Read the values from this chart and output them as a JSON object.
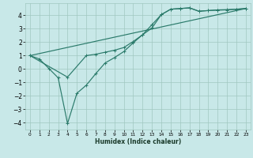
{
  "xlabel": "Humidex (Indice chaleur)",
  "ylabel": "",
  "bg_color": "#c8e8e8",
  "grid_color": "#a0c8c0",
  "line_color": "#2a7a6a",
  "xlim": [
    -0.5,
    23.5
  ],
  "ylim": [
    -4.5,
    4.9
  ],
  "xticks": [
    0,
    1,
    2,
    3,
    4,
    5,
    6,
    7,
    8,
    9,
    10,
    11,
    12,
    13,
    14,
    15,
    16,
    17,
    18,
    19,
    20,
    21,
    22,
    23
  ],
  "yticks": [
    -4,
    -3,
    -2,
    -1,
    0,
    1,
    2,
    3,
    4
  ],
  "line1_x": [
    0,
    1,
    2,
    3,
    4,
    5,
    6,
    7,
    8,
    9,
    10,
    11,
    12,
    13,
    14,
    15,
    16,
    17,
    18,
    19,
    20,
    21,
    22,
    23
  ],
  "line1_y": [
    1.0,
    0.75,
    0.05,
    -0.65,
    -4.05,
    -1.8,
    -1.2,
    -0.35,
    0.45,
    0.85,
    1.3,
    1.95,
    2.55,
    3.3,
    4.05,
    4.45,
    4.5,
    4.55,
    4.3,
    4.35,
    4.38,
    4.4,
    4.45,
    4.5
  ],
  "line2_x": [
    0,
    4,
    6,
    7,
    8,
    9,
    10,
    11,
    12,
    13,
    14,
    15,
    16,
    17,
    18,
    19,
    20,
    21,
    22,
    23
  ],
  "line2_y": [
    1.0,
    -0.6,
    1.0,
    1.1,
    1.25,
    1.4,
    1.6,
    2.05,
    2.55,
    3.05,
    4.05,
    4.45,
    4.5,
    4.55,
    4.3,
    4.35,
    4.4,
    4.42,
    4.45,
    4.5
  ],
  "line3_x": [
    0,
    23
  ],
  "line3_y": [
    1.0,
    4.5
  ]
}
